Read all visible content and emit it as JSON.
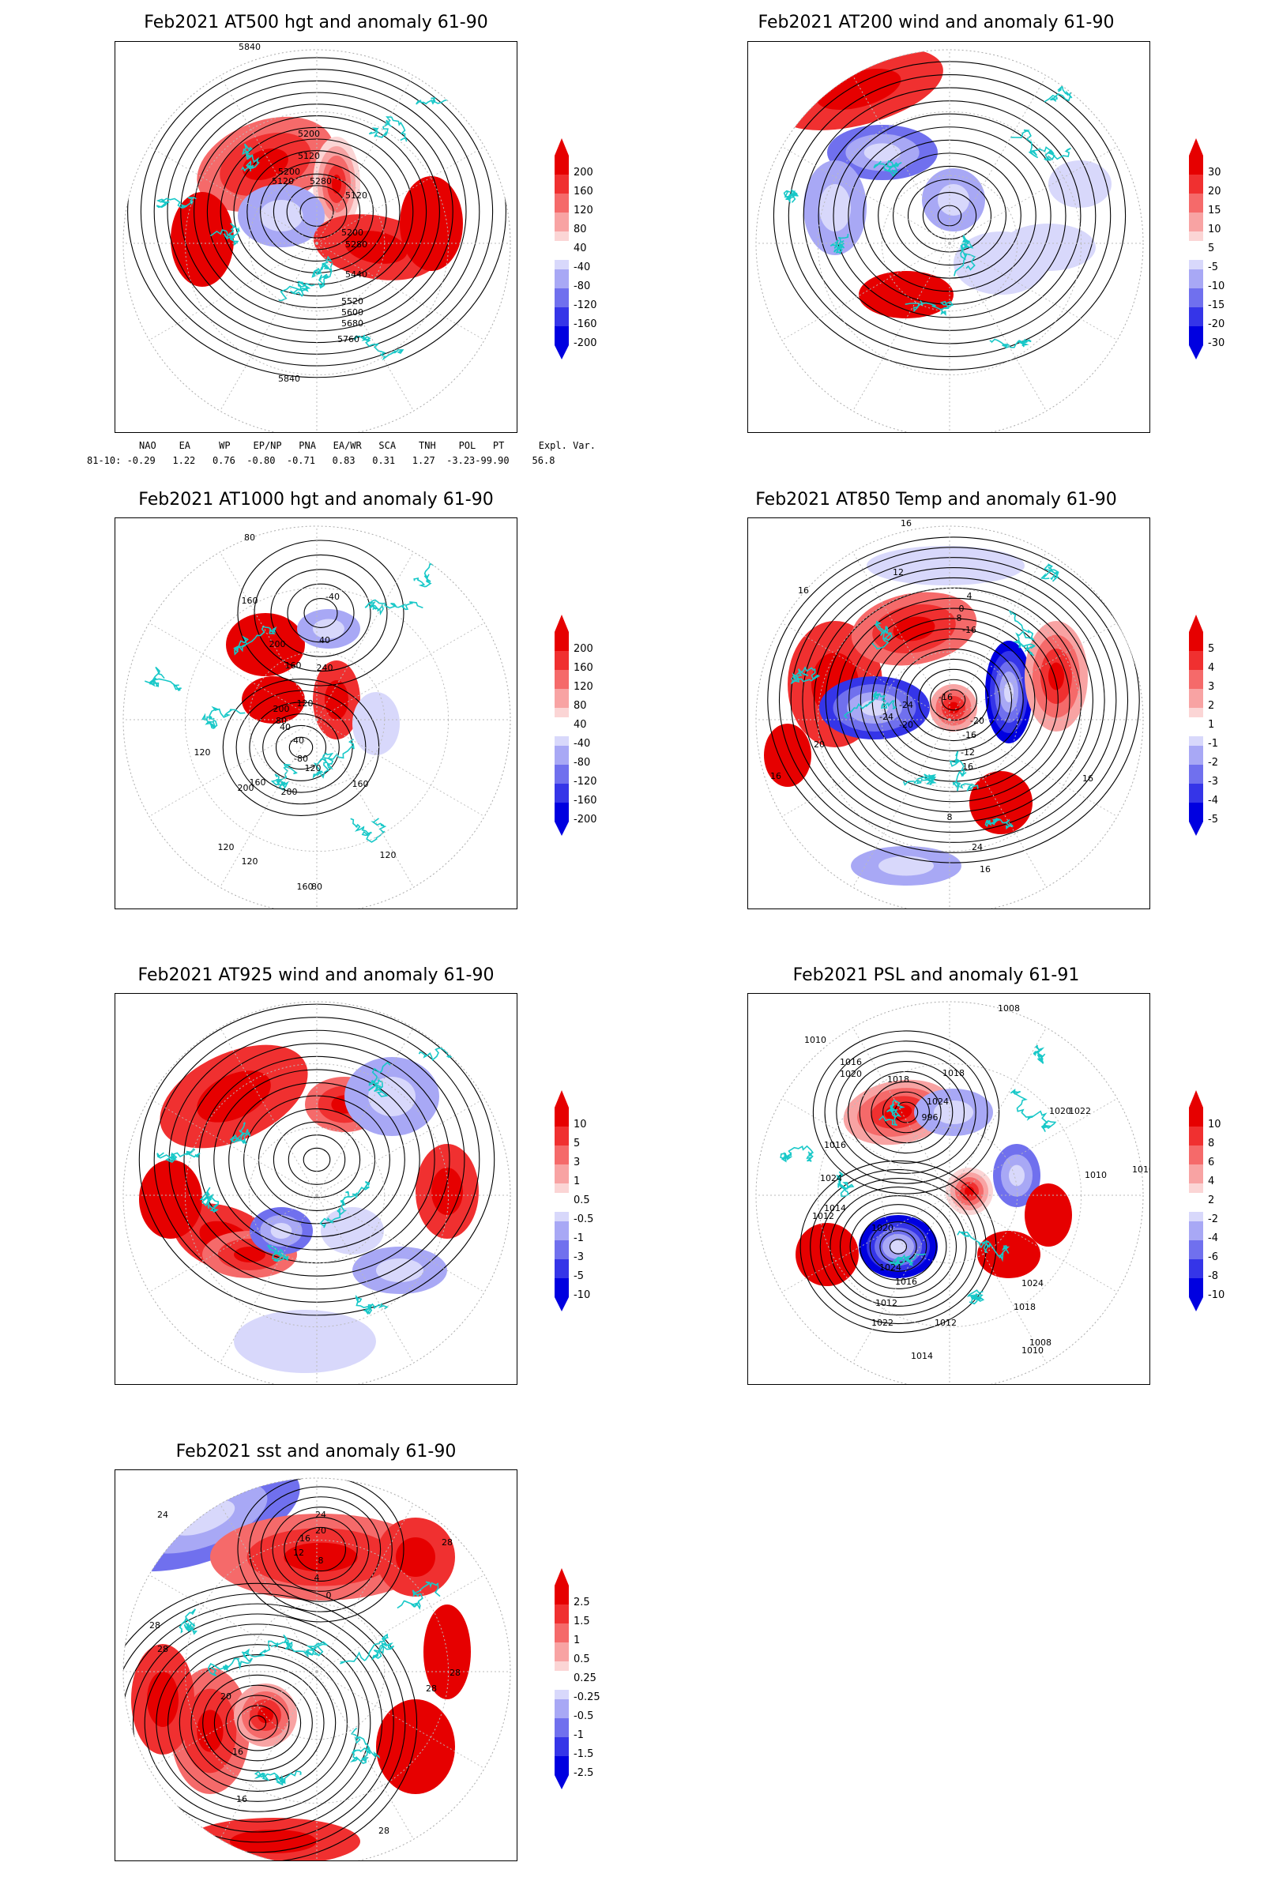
{
  "panels": [
    {
      "id": "at500",
      "title": "Feb2021 AT500 hgt and anomaly 61-90",
      "colorbar": [
        "200",
        "160",
        "120",
        "80",
        "40",
        "-40",
        "-80",
        "-120",
        "-160",
        "-200"
      ],
      "contour_labels": [
        "5840",
        "5200",
        "5120",
        "5200",
        "5120",
        "5280",
        "5120",
        "5200",
        "5280",
        "5440",
        "5520",
        "5600",
        "5680",
        "5760",
        "5840"
      ]
    },
    {
      "id": "at200",
      "title": "Feb2021 AT200 wind and anomaly 61-90",
      "colorbar": [
        "30",
        "20",
        "15",
        "10",
        "5",
        "-5",
        "-10",
        "-15",
        "-20",
        "-30"
      ],
      "contour_labels": []
    },
    {
      "id": "at1000",
      "title": "Feb2021 AT1000 hgt and anomaly 61-90",
      "colorbar": [
        "200",
        "160",
        "120",
        "80",
        "40",
        "-40",
        "-80",
        "-120",
        "-160",
        "-200"
      ],
      "contour_labels": [
        "80",
        "160",
        "-40",
        "200",
        "40",
        "160",
        "240",
        "120",
        "200",
        "80",
        "40",
        "-40",
        "-80",
        "120",
        "160",
        "200",
        "120",
        "160",
        "80",
        "120",
        "200",
        "160",
        "120",
        "80",
        "120"
      ]
    },
    {
      "id": "at850",
      "title": "Feb2021 AT850 Temp and anomaly 61-90",
      "colorbar": [
        "5",
        "4",
        "3",
        "2",
        "1",
        "-1",
        "-2",
        "-3",
        "-4",
        "-5"
      ],
      "contour_labels": [
        "16",
        "12",
        "16",
        "4",
        "0",
        "-8",
        "-16",
        "-24",
        "-16",
        "-20",
        "-24",
        "-20",
        "-16",
        "-12",
        "16",
        "20",
        "16",
        "8",
        "16",
        "24",
        "16",
        "20"
      ]
    },
    {
      "id": "at925",
      "title": "Feb2021 AT925 wind and anomaly 61-90",
      "colorbar": [
        "10",
        "5",
        "3",
        "1",
        "0.5",
        "-0.5",
        "-1",
        "-3",
        "-5",
        "-10"
      ],
      "contour_labels": []
    },
    {
      "id": "psl",
      "title": "Feb2021 PSL and anomaly 61-91",
      "colorbar": [
        "10",
        "8",
        "6",
        "4",
        "2",
        "-2",
        "-4",
        "-6",
        "-8",
        "-10"
      ],
      "contour_labels": [
        "1008",
        "1010",
        "1016",
        "1020",
        "1018",
        "1018",
        "1024",
        "996",
        "1020",
        "1022",
        "1010",
        "1016",
        "1024",
        "1014",
        "1012",
        "1020",
        "1024",
        "1016",
        "1012",
        "1008",
        "1010",
        "1012",
        "1014",
        "1018",
        "1024",
        "1022",
        "1010"
      ]
    },
    {
      "id": "sst",
      "title": "Feb2021 sst and anomaly 61-90",
      "colorbar": [
        "2.5",
        "1.5",
        "1",
        "0.5",
        "0.25",
        "-0.25",
        "-0.5",
        "-1",
        "-1.5",
        "-2.5"
      ],
      "contour_labels": [
        "24",
        "24",
        "20",
        "16",
        "12",
        "8",
        "4",
        "0",
        "28",
        "28",
        "28",
        "20",
        "16",
        "16",
        "28",
        "28",
        "28"
      ]
    }
  ],
  "teleconnections": {
    "header": "NAO    EA     WP    EP/NP   PNA   EA/WR   SCA    TNH    POL   PT      Expl. Var.",
    "row": "81-10: -0.29   1.22   0.76  -0.80  -0.71   0.83   0.31   1.27  -3.23-99.90    56.8"
  },
  "colors": {
    "red_scale": [
      "#e60000",
      "#f03030",
      "#f56a6a",
      "#f8a3a3",
      "#fbd5d5"
    ],
    "blue_scale": [
      "#d8d8fb",
      "#a8a8f5",
      "#7070ee",
      "#3535e8",
      "#0000e0"
    ],
    "coast": "#18c8c8"
  }
}
